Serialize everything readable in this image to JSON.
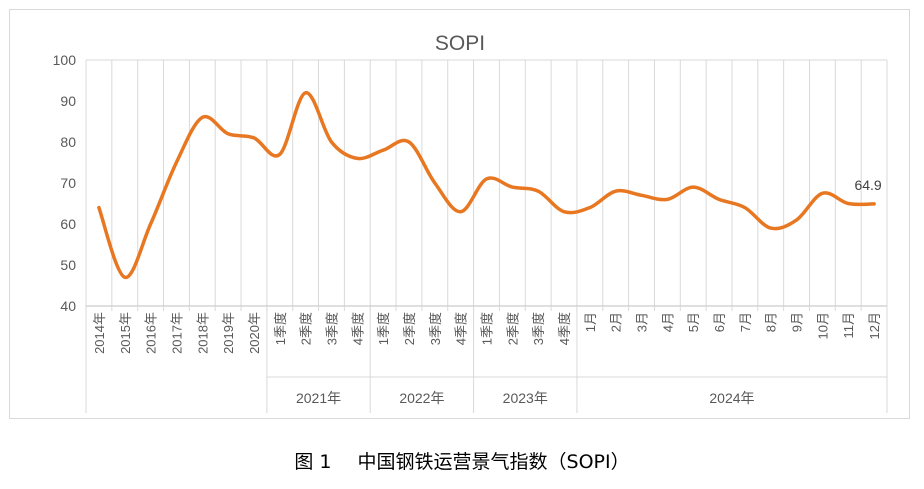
{
  "chart_data": {
    "type": "line",
    "title": "SOPI",
    "ylim": [
      40,
      100
    ],
    "yticks": [
      40,
      50,
      60,
      70,
      80,
      90,
      100
    ],
    "grid": "vertical",
    "line_color": "#E87722",
    "categories": [
      "2014年",
      "2015年",
      "2016年",
      "2017年",
      "2018年",
      "2019年",
      "2020年",
      "1季度",
      "2季度",
      "3季度",
      "4季度",
      "1季度",
      "2季度",
      "3季度",
      "4季度",
      "1季度",
      "2季度",
      "3季度",
      "4季度",
      "1月",
      "2月",
      "3月",
      "4月",
      "5月",
      "6月",
      "7月",
      "8月",
      "9月",
      "10月",
      "11月",
      "12月"
    ],
    "values": [
      64,
      47,
      60,
      75,
      86,
      82,
      81,
      77,
      92,
      80,
      76,
      78,
      80,
      70,
      63,
      71,
      69,
      68,
      63,
      64,
      68,
      67,
      66,
      69,
      66,
      64,
      59,
      61,
      67.5,
      65,
      64.9
    ],
    "groups": [
      {
        "label": "2021年",
        "start": 7,
        "end": 10
      },
      {
        "label": "2022年",
        "start": 11,
        "end": 14
      },
      {
        "label": "2023年",
        "start": 15,
        "end": 18
      },
      {
        "label": "2024年",
        "start": 19,
        "end": 30
      }
    ],
    "last_label": "64.9"
  },
  "caption": {
    "figure_no": "图 1",
    "text": "中国钢铁运营景气指数（SOPI）"
  }
}
